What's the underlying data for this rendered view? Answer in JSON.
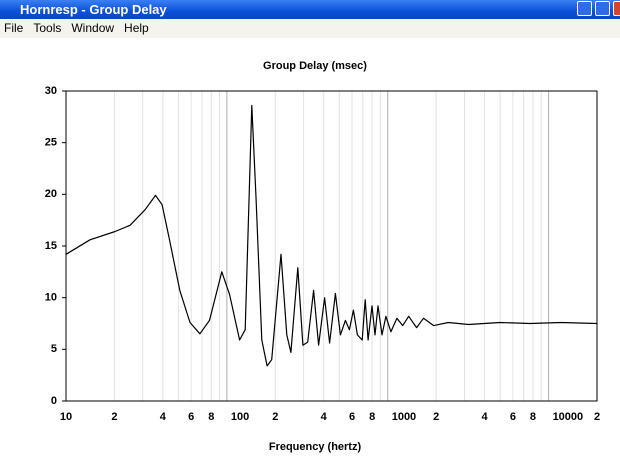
{
  "window": {
    "title": "Hornresp - Group Delay",
    "menu": [
      "File",
      "Tools",
      "Window",
      "Help"
    ]
  },
  "chart_data": {
    "type": "line",
    "title": "Group Delay (msec)",
    "x_label": "Frequency (hertz)",
    "x": [
      10,
      14.1,
      20.2,
      25,
      31,
      36,
      39.6,
      44,
      51,
      59,
      68,
      78,
      93,
      104,
      120,
      130,
      143,
      152,
      165,
      178,
      190,
      217,
      236,
      250,
      276,
      297,
      318,
      346,
      372,
      405,
      435,
      473,
      508,
      546,
      578,
      612,
      648,
      694,
      724,
      755,
      799,
      834,
      870,
      921,
      975,
      1047,
      1140,
      1240,
      1350,
      1512,
      1670,
      1930,
      2380,
      3180,
      4990,
      7700,
      11900,
      20000
    ],
    "series": [
      {
        "color": "#000000",
        "values": [
          14.2,
          15.6,
          16.4,
          17.0,
          18.5,
          19.9,
          19.0,
          15.6,
          10.7,
          7.6,
          6.5,
          7.8,
          12.5,
          10.3,
          5.9,
          6.9,
          28.6,
          19.5,
          5.9,
          3.4,
          4.0,
          14.2,
          6.4,
          4.7,
          12.9,
          5.4,
          5.7,
          10.7,
          5.4,
          10.0,
          5.6,
          10.4,
          6.4,
          7.8,
          6.9,
          8.8,
          6.4,
          5.9,
          9.8,
          5.9,
          9.2,
          6.4,
          9.2,
          6.4,
          8.2,
          6.7,
          8.0,
          7.3,
          8.2,
          7.1,
          8.0,
          7.3,
          7.6,
          7.4,
          7.6,
          7.5,
          7.6,
          7.5
        ]
      }
    ],
    "xscale": "log",
    "xlim": [
      10,
      20000
    ],
    "xticks": [
      10,
      {
        "value": 20,
        "label": "2"
      },
      {
        "value": 40,
        "label": "4"
      },
      {
        "value": 60,
        "label": "6"
      },
      {
        "value": 80,
        "label": "8"
      },
      100,
      {
        "value": 200,
        "label": "2"
      },
      {
        "value": 400,
        "label": "4"
      },
      {
        "value": 600,
        "label": "6"
      },
      {
        "value": 800,
        "label": "8"
      },
      1000,
      {
        "value": 2000,
        "label": "2"
      },
      {
        "value": 4000,
        "label": "4"
      },
      {
        "value": 6000,
        "label": "6"
      },
      {
        "value": 8000,
        "label": "8"
      },
      10000,
      {
        "value": 20000,
        "label": "2"
      }
    ],
    "xminorticks": [
      30,
      50,
      70,
      90,
      300,
      500,
      700,
      900,
      3000,
      5000,
      7000,
      9000
    ],
    "ylim": [
      0,
      30
    ],
    "yticks": [
      0,
      5,
      10,
      15,
      20,
      25,
      30
    ],
    "grid": true
  }
}
